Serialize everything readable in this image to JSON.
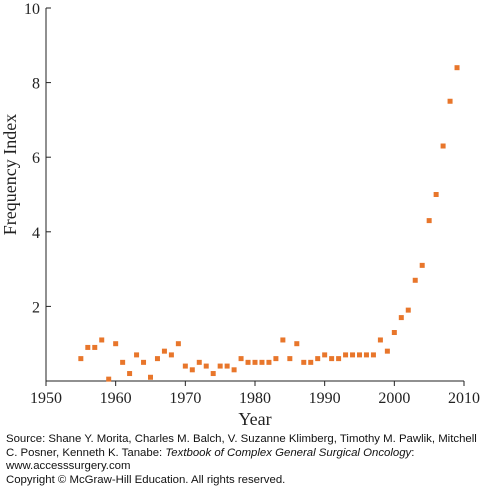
{
  "chart_data": {
    "type": "scatter",
    "xlabel": "Year",
    "ylabel": "Frequency Index",
    "xlim": [
      1950,
      2010
    ],
    "ylim": [
      0,
      10
    ],
    "xticks": [
      "1950",
      "1960",
      "1970",
      "1980",
      "1990",
      "2000",
      "2010"
    ],
    "yticks": [
      "2",
      "4",
      "6",
      "8",
      "10"
    ],
    "marker_color": "#E8762B",
    "grid": false,
    "legend": "none",
    "series": [
      {
        "x": [
          1955,
          1956,
          1957,
          1958,
          1959,
          1960,
          1961,
          1962,
          1963,
          1964,
          1965,
          1966,
          1967,
          1968,
          1969,
          1970,
          1971,
          1972,
          1973,
          1974,
          1975,
          1976,
          1977,
          1978,
          1979,
          1980,
          1981,
          1982,
          1983,
          1984,
          1985,
          1986,
          1987,
          1988,
          1989,
          1990,
          1991,
          1992,
          1993,
          1994,
          1995,
          1996,
          1997,
          1998,
          1999,
          2000,
          2001,
          2002,
          2003,
          2004,
          2005,
          2006,
          2007,
          2008,
          2009
        ],
        "y": [
          0.6,
          0.9,
          0.9,
          1.1,
          0.05,
          1.0,
          0.5,
          0.2,
          0.7,
          0.5,
          0.1,
          0.6,
          0.8,
          0.7,
          1.0,
          0.4,
          0.3,
          0.5,
          0.4,
          0.2,
          0.4,
          0.4,
          0.3,
          0.6,
          0.5,
          0.5,
          0.5,
          0.5,
          0.6,
          1.1,
          0.6,
          1.0,
          0.5,
          0.5,
          0.6,
          0.7,
          0.6,
          0.6,
          0.7,
          0.7,
          0.7,
          0.7,
          0.7,
          1.1,
          0.8,
          1.3,
          1.7,
          1.9,
          2.7,
          3.1,
          4.3,
          5.0,
          6.3,
          7.5,
          8.4
        ]
      }
    ]
  },
  "caption": {
    "source_prefix": "Source: Shane Y. Morita, Charles M. Balch, V. Suzanne Klimberg, Timothy M. Pawlik, Mitchell C. Posner, Kenneth K. Tanabe: ",
    "book_title": "Textbook of Complex General Surgical Oncology",
    "colon": ":",
    "url": "www.accesssurgery.com",
    "copyright": "Copyright © McGraw-Hill Education. All rights reserved."
  }
}
